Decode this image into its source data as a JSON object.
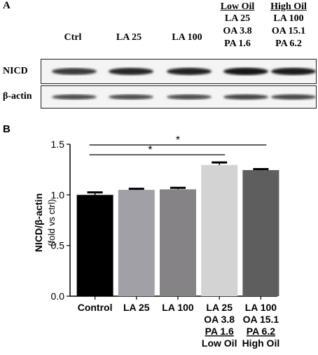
{
  "panel_a": {
    "letter": "A",
    "lanes": [
      "Ctrl",
      "LA 25",
      "LA 100"
    ],
    "groups": [
      {
        "title": "Low Oil",
        "lines": [
          "LA 25",
          "OA 3.8",
          "PA 1.6"
        ]
      },
      {
        "title": "High Oil",
        "lines": [
          "LA 100",
          "OA 15.1",
          "PA 6.2"
        ]
      }
    ],
    "rows": [
      {
        "label": "NICD",
        "band_intensity": [
          0.75,
          0.85,
          0.88,
          0.95,
          0.9
        ]
      },
      {
        "label": "β-actin",
        "band_intensity": [
          0.65,
          0.65,
          0.65,
          0.7,
          0.68
        ]
      }
    ]
  },
  "panel_b": {
    "letter": "B",
    "significance_marker": "*"
  },
  "chart_data": {
    "type": "bar",
    "ylabel": "NICD/β-actin",
    "ylabel_sub": "(fold vs ctrl)",
    "ylim": [
      0.0,
      1.5
    ],
    "yticks": [
      "0.0",
      "0.5",
      "1.0",
      "1.5"
    ],
    "grid": false,
    "categories": [
      {
        "lines": [
          "Control"
        ],
        "underline_index": -1
      },
      {
        "lines": [
          "LA 25"
        ],
        "underline_index": -1
      },
      {
        "lines": [
          "LA 100"
        ],
        "underline_index": -1
      },
      {
        "lines": [
          "LA 25",
          "OA 3.8",
          "PA 1.6",
          "Low Oil"
        ],
        "underline_index": 2
      },
      {
        "lines": [
          "LA 100",
          "OA 15.1",
          "PA 6.2",
          "High Oil"
        ],
        "underline_index": 2
      }
    ],
    "values": [
      1.0,
      1.05,
      1.055,
      1.295,
      1.245
    ],
    "errors": [
      0.025,
      0.01,
      0.015,
      0.025,
      0.01
    ],
    "colors": [
      "#000000",
      "#a1a0a7",
      "#858386",
      "#d3d3d3",
      "#5e5e5e"
    ],
    "comparisons": [
      {
        "from": 0,
        "to": 3,
        "label": "*"
      },
      {
        "from": 0,
        "to": 4,
        "label": "*"
      }
    ]
  }
}
